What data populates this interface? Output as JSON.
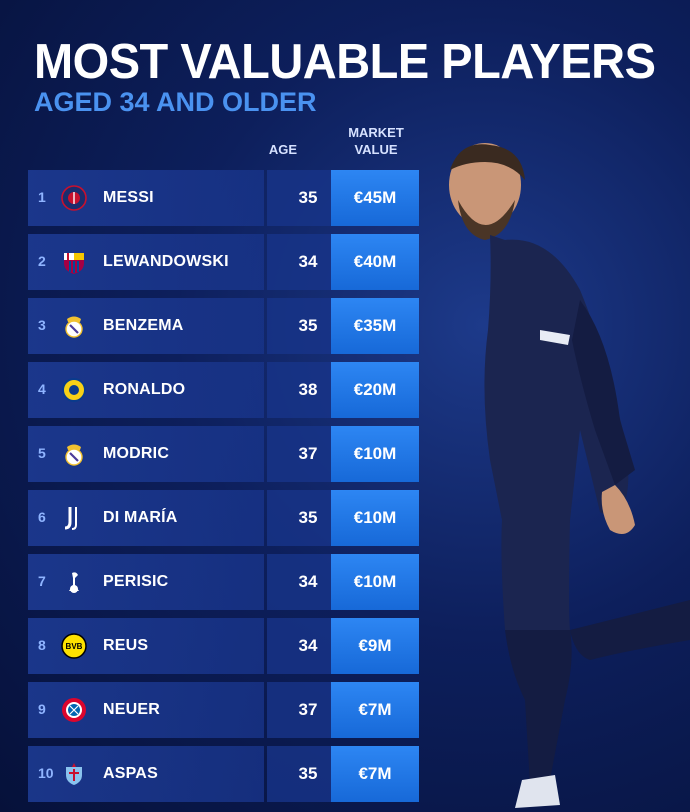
{
  "title": "MOST VALUABLE PLAYERS",
  "subtitle": "AGED 34 AND OLDER",
  "headers": {
    "age": "AGE",
    "market_value_line1": "MARKET",
    "market_value_line2": "VALUE"
  },
  "players": [
    {
      "rank": "1",
      "club_icon": "psg-crest-icon",
      "name": "MESSI",
      "age": "35",
      "value": "€45M"
    },
    {
      "rank": "2",
      "club_icon": "barcelona-crest-icon",
      "name": "LEWANDOWSKI",
      "age": "34",
      "value": "€40M"
    },
    {
      "rank": "3",
      "club_icon": "real-madrid-crest-icon",
      "name": "BENZEMA",
      "age": "35",
      "value": "€35M"
    },
    {
      "rank": "4",
      "club_icon": "al-nassr-crest-icon",
      "name": "RONALDO",
      "age": "38",
      "value": "€20M"
    },
    {
      "rank": "5",
      "club_icon": "real-madrid-crest-icon",
      "name": "MODRIC",
      "age": "37",
      "value": "€10M"
    },
    {
      "rank": "6",
      "club_icon": "juventus-crest-icon",
      "name": "DI MARÍA",
      "age": "35",
      "value": "€10M"
    },
    {
      "rank": "7",
      "club_icon": "tottenham-crest-icon",
      "name": "PERISIC",
      "age": "34",
      "value": "€10M"
    },
    {
      "rank": "8",
      "club_icon": "dortmund-crest-icon",
      "name": "REUS",
      "age": "34",
      "value": "€9M"
    },
    {
      "rank": "9",
      "club_icon": "bayern-crest-icon",
      "name": "NEUER",
      "age": "37",
      "value": "€7M"
    },
    {
      "rank": "10",
      "club_icon": "celta-crest-icon",
      "name": "ASPAS",
      "age": "35",
      "value": "€7M"
    }
  ],
  "chart_data": {
    "type": "table",
    "title": "MOST VALUABLE PLAYERS",
    "subtitle": "AGED 34 AND OLDER",
    "columns": [
      "",
      "",
      "AGE",
      "MARKET VALUE"
    ],
    "rows": [
      [
        "1",
        "MESSI",
        35,
        "€45M"
      ],
      [
        "2",
        "LEWANDOWSKI",
        34,
        "€40M"
      ],
      [
        "3",
        "BENZEMA",
        35,
        "€35M"
      ],
      [
        "4",
        "RONALDO",
        38,
        "€20M"
      ],
      [
        "5",
        "MODRIC",
        37,
        "€10M"
      ],
      [
        "6",
        "DI MARÍA",
        35,
        "€10M"
      ],
      [
        "7",
        "PERISIC",
        34,
        "€10M"
      ],
      [
        "8",
        "REUS",
        34,
        "€9M"
      ],
      [
        "9",
        "NEUER",
        37,
        "€7M"
      ],
      [
        "10",
        "ASPAS",
        35,
        "€7M"
      ]
    ]
  },
  "colors": {
    "background": "#0d1f5c",
    "row": "#1e3c96",
    "value_cell": "#2d86f3",
    "subtitle": "#4a92f0",
    "rank": "#8fb4ff"
  }
}
